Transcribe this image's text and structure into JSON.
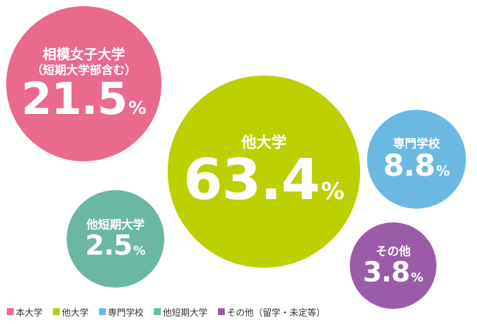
{
  "chart_data": {
    "type": "bubble",
    "unit": "%",
    "bubbles": [
      {
        "name": "相模女子大学",
        "sub": "（短期大学部含む）",
        "value": 21.5,
        "color": "#e96a8c"
      },
      {
        "name": "他大学",
        "sub": "",
        "value": 63.4,
        "color": "#bcd000"
      },
      {
        "name": "専門学校",
        "sub": "",
        "value": 8.8,
        "color": "#6bb9e3"
      },
      {
        "name": "他短期大学",
        "sub": "",
        "value": 2.5,
        "color": "#6ab8a4"
      },
      {
        "name": "その他",
        "sub": "",
        "value": 3.8,
        "color": "#9c5ba8"
      }
    ],
    "legend": [
      {
        "label": "本大学",
        "color": "#e96a8c"
      },
      {
        "label": "他大学",
        "color": "#bcd000"
      },
      {
        "label": "専門学校",
        "color": "#6bb9e3"
      },
      {
        "label": "他短期大学",
        "color": "#6ab8a4"
      },
      {
        "label": "その他（留学・未定等）",
        "color": "#9c5ba8"
      }
    ]
  }
}
